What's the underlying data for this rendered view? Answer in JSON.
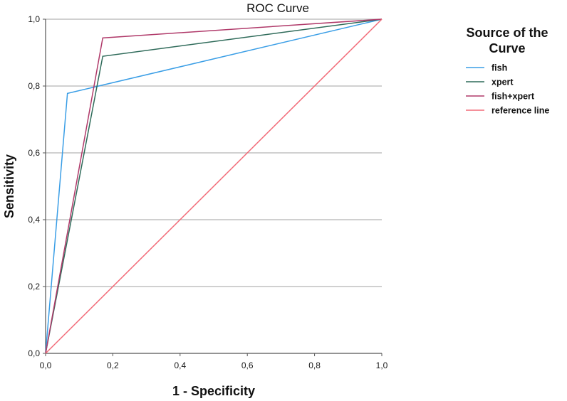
{
  "chart_data": {
    "type": "line",
    "title": "ROC Curve",
    "xlabel": "1 - Specificity",
    "ylabel": "Sensitivity",
    "xlim": [
      0,
      1
    ],
    "ylim": [
      0,
      1
    ],
    "x_ticks": [
      0,
      0.2,
      0.4,
      0.6,
      0.8,
      1.0
    ],
    "y_ticks": [
      0,
      0.2,
      0.4,
      0.6,
      0.8,
      1.0
    ],
    "x_tick_labels": [
      "0,0",
      "0,2",
      "0,4",
      "0,6",
      "0,8",
      "1,0"
    ],
    "y_tick_labels": [
      "0,0",
      "0,2",
      "0,4",
      "0,6",
      "0,8",
      "1,0"
    ],
    "grid": "horizontal",
    "legend": {
      "title_lines": [
        "Source of the",
        "Curve"
      ],
      "placement": "right"
    },
    "series": [
      {
        "name": "fish",
        "color": "#3a9ee6",
        "x": [
          0.0,
          0.065,
          1.0
        ],
        "y": [
          0.0,
          0.778,
          1.0
        ]
      },
      {
        "name": "xpert",
        "color": "#2f6b5a",
        "x": [
          0.0,
          0.17,
          1.0
        ],
        "y": [
          0.0,
          0.889,
          1.0
        ]
      },
      {
        "name": "fish+xpert",
        "color": "#b03a6a",
        "x": [
          0.0,
          0.17,
          1.0
        ],
        "y": [
          0.0,
          0.944,
          1.0
        ]
      },
      {
        "name": "reference line",
        "color": "#f26b78",
        "x": [
          0.0,
          1.0
        ],
        "y": [
          0.0,
          1.0
        ]
      }
    ]
  }
}
